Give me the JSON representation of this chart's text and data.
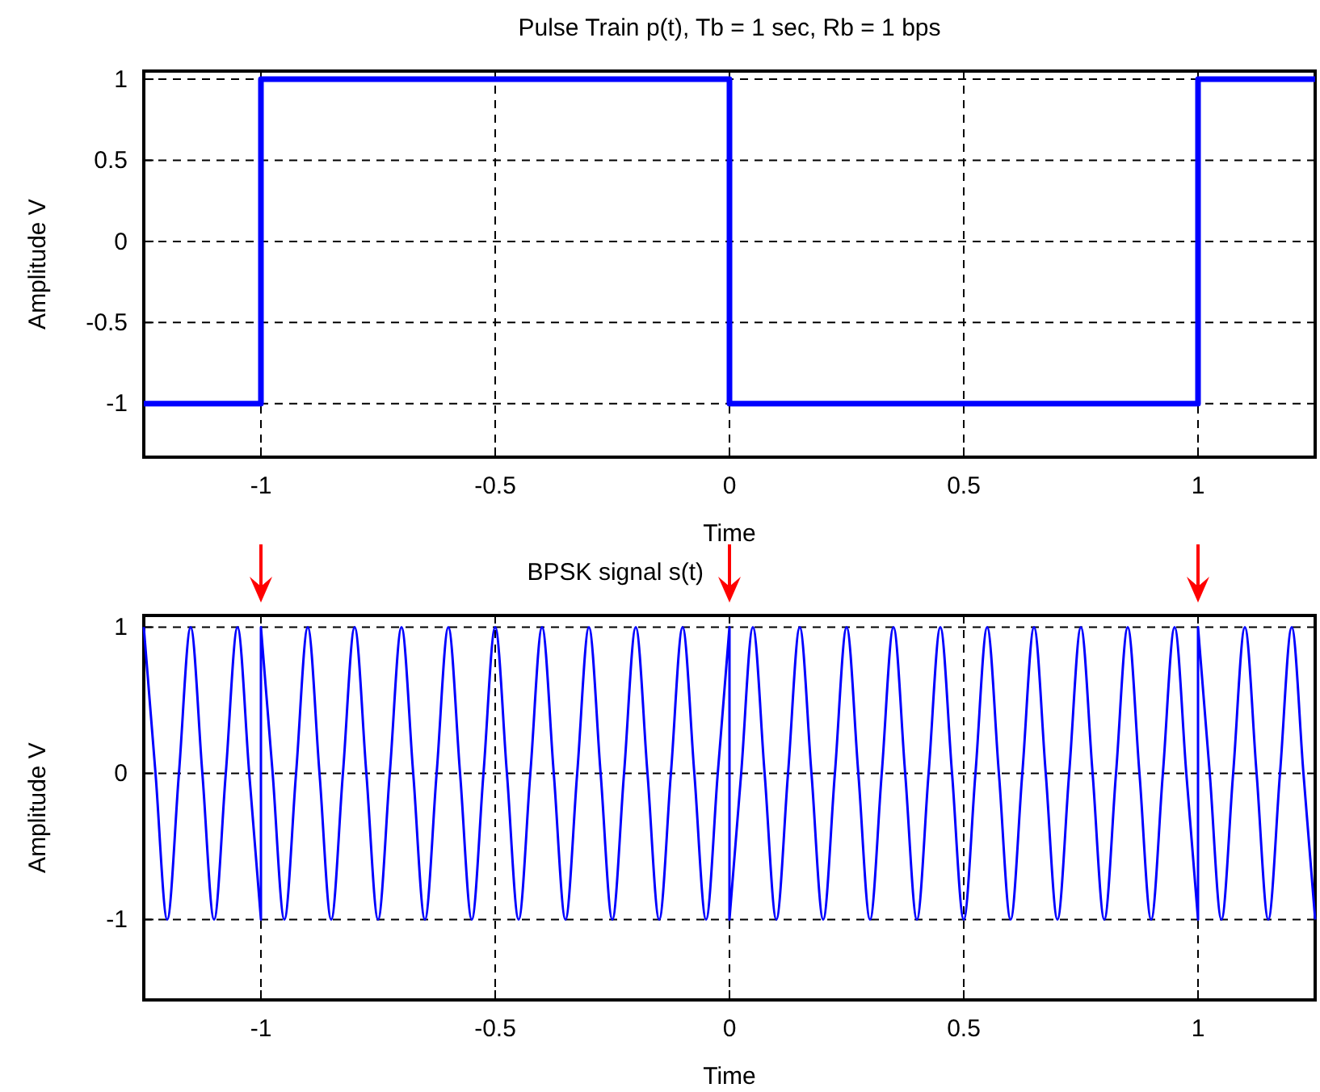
{
  "chart_data": [
    {
      "type": "line",
      "title": "Pulse Train p(t), Tb = 1 sec, Rb = 1 bps",
      "xlabel": "Time",
      "ylabel": "Amplitude V",
      "xlim": [
        -1.25,
        1.25
      ],
      "ylim": [
        -1.33,
        1.05
      ],
      "xticks": [
        -1,
        -0.5,
        0,
        0.5,
        1
      ],
      "yticks": [
        -1,
        -0.5,
        0,
        0.5,
        1
      ],
      "grid": true,
      "line_style": "solid",
      "series": [
        {
          "color": "#0000ff",
          "x": [
            -1.25,
            -1,
            -1,
            0,
            0,
            1,
            1,
            1.25
          ],
          "values": [
            -1,
            -1,
            1,
            1,
            -1,
            -1,
            1,
            1
          ]
        }
      ]
    },
    {
      "type": "line",
      "title": "BPSK signal s(t)",
      "xlabel": "Time",
      "ylabel": "Amplitude V",
      "xlim": [
        -1.25,
        1.25
      ],
      "ylim": [
        -1.55,
        1.08
      ],
      "xticks": [
        -1,
        -0.5,
        0,
        0.5,
        1
      ],
      "yticks": [
        -1,
        0,
        1
      ],
      "grid": true,
      "line_style": "solid",
      "series": [
        {
          "color": "#0000ff",
          "x": [
            -1.25,
            -1.225,
            -1.2,
            -1.175,
            -1.15,
            -1.125,
            -1.1,
            -1.075,
            -1.05,
            -1.025,
            -1,
            -1,
            -0.975,
            -0.95,
            -0.925,
            -0.9,
            -0.875,
            -0.85,
            -0.825,
            -0.8,
            -0.775,
            -0.75,
            -0.725,
            -0.7,
            -0.675,
            -0.65,
            -0.625,
            -0.6,
            -0.575,
            -0.55,
            -0.525,
            -0.5,
            -0.475,
            -0.45,
            -0.425,
            -0.4,
            -0.375,
            -0.35,
            -0.325,
            -0.3,
            -0.275,
            -0.25,
            -0.225,
            -0.2,
            -0.175,
            -0.15,
            -0.125,
            -0.1,
            -0.075,
            -0.05,
            -0.025,
            0,
            0,
            0.025,
            0.05,
            0.075,
            0.1,
            0.125,
            0.15,
            0.175,
            0.2,
            0.225,
            0.25,
            0.275,
            0.3,
            0.325,
            0.35,
            0.375,
            0.4,
            0.425,
            0.45,
            0.475,
            0.5,
            0.525,
            0.55,
            0.575,
            0.6,
            0.625,
            0.65,
            0.675,
            0.7,
            0.725,
            0.75,
            0.775,
            0.8,
            0.825,
            0.85,
            0.875,
            0.9,
            0.925,
            0.95,
            0.975,
            1,
            1,
            1.025,
            1.05,
            1.075,
            1.1,
            1.125,
            1.15,
            1.175,
            1.2,
            1.225,
            1.25
          ],
          "values": [
            1,
            0,
            -1,
            0,
            1,
            0,
            -1,
            0,
            1,
            0,
            -1,
            1,
            0,
            -1,
            0,
            1,
            0,
            -1,
            0,
            1,
            0,
            -1,
            0,
            1,
            0,
            -1,
            0,
            1,
            0,
            -1,
            0,
            1,
            0,
            -1,
            0,
            1,
            0,
            -1,
            0,
            1,
            0,
            -1,
            0,
            1,
            0,
            -1,
            0,
            1,
            0,
            -1,
            0,
            1,
            -1,
            0,
            1,
            0,
            -1,
            0,
            1,
            0,
            -1,
            0,
            1,
            0,
            -1,
            0,
            1,
            0,
            -1,
            0,
            1,
            0,
            -1,
            0,
            1,
            0,
            -1,
            0,
            1,
            0,
            -1,
            0,
            1,
            0,
            -1,
            0,
            1,
            0,
            -1,
            0,
            1,
            0,
            -1,
            1,
            0,
            -1,
            0,
            1,
            0,
            -1,
            0,
            1,
            0,
            -1
          ]
        }
      ]
    }
  ]
}
